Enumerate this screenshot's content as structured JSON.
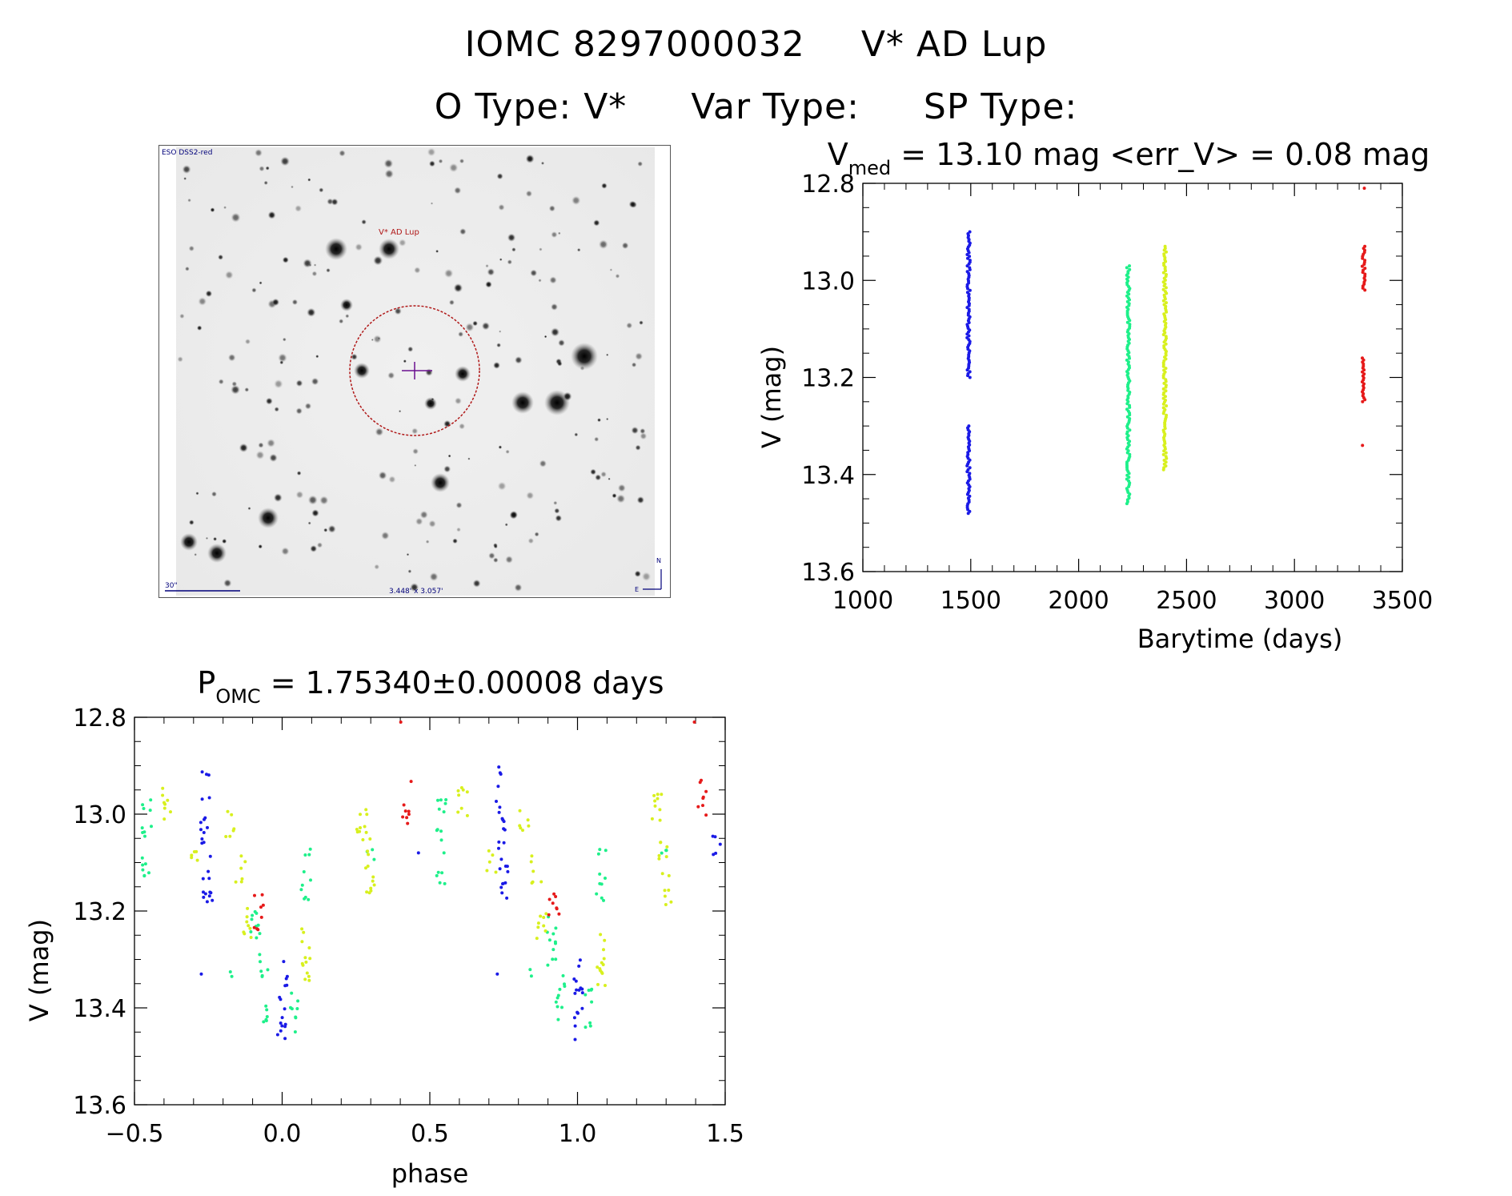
{
  "header": {
    "line1_id": "IOMC 8297000032",
    "line1_name": "V* AD Lup",
    "otype_label": "O Type: V*",
    "vartype_label": "Var Type:",
    "sptype_label": "SP Type:"
  },
  "image_panel": {
    "survey_label": "ESO DSS2-red",
    "target_label": "V* AD Lup",
    "scale_label": "30\"",
    "fov_label": "3.448' x 3.057'",
    "north_label": "N",
    "east_label": "E",
    "colors": {
      "target_circle": "#b01818",
      "labels": "#00007a",
      "crosshair": "#6a1090"
    }
  },
  "chart_data": [
    {
      "type": "scatter",
      "title_main": "V",
      "title_sub": "med",
      "title_rest": " = 13.10 mag <err_V> = 0.08 mag",
      "xlabel": "Barytime (days)",
      "ylabel": "V (mag)",
      "xlim": [
        1000,
        3500
      ],
      "ylim": [
        13.6,
        12.8
      ],
      "y_inverted": true,
      "xticks": [
        1000,
        1500,
        2000,
        2500,
        3000,
        3500
      ],
      "xtick_labels": [
        "1000",
        "1500",
        "2000",
        "2500",
        "3000",
        "3500"
      ],
      "yticks": [
        12.8,
        13.0,
        13.2,
        13.4,
        13.6
      ],
      "ytick_labels": [
        "12.8",
        "13.0",
        "13.2",
        "13.4",
        "13.6"
      ],
      "series": [
        {
          "color": "#1a1ae6",
          "x_center": 1490,
          "ranges": [
            [
              12.9,
              13.2
            ],
            [
              13.3,
              13.48
            ]
          ]
        },
        {
          "color": "#1ef08a",
          "x_center": 2230,
          "ranges": [
            [
              12.97,
              13.46
            ]
          ]
        },
        {
          "color": "#d8f01e",
          "x_center": 2400,
          "ranges": [
            [
              12.93,
              13.39
            ]
          ]
        },
        {
          "color": "#e61a1a",
          "x_center": 3320,
          "ranges": [
            [
              12.81,
              12.81
            ],
            [
              12.93,
              13.02
            ],
            [
              13.16,
              13.25
            ],
            [
              13.34,
              13.34
            ]
          ]
        }
      ]
    },
    {
      "type": "scatter",
      "title_main": "P",
      "title_sub": "OMC",
      "title_rest": " = 1.75340±0.00008 days",
      "xlabel": "phase",
      "ylabel": "V (mag)",
      "xlim": [
        -0.5,
        1.5
      ],
      "ylim": [
        13.6,
        12.8
      ],
      "y_inverted": true,
      "xticks": [
        -0.5,
        0.0,
        0.5,
        1.0,
        1.5
      ],
      "xtick_labels": [
        "−0.5",
        "0.0",
        "0.5",
        "1.0",
        "1.5"
      ],
      "yticks": [
        12.8,
        13.0,
        13.2,
        13.4,
        13.6
      ],
      "ytick_labels": [
        "12.8",
        "13.0",
        "13.2",
        "13.4",
        "13.6"
      ],
      "series": [
        {
          "color": "#1a1ae6",
          "clusters": [
            [
              -0.26,
              12.9,
              13.06
            ],
            [
              -0.25,
              13.07,
              13.2
            ],
            [
              -0.28,
              13.33,
              13.33
            ],
            [
              0.0,
              13.3,
              13.48
            ],
            [
              0.47,
              13.08,
              13.09
            ],
            [
              0.74,
              12.9,
              13.06
            ],
            [
              0.75,
              13.07,
              13.2
            ],
            [
              0.72,
              13.33,
              13.33
            ],
            [
              1.0,
              13.3,
              13.48
            ],
            [
              1.47,
              13.04,
              13.09
            ]
          ]
        },
        {
          "color": "#1ef08a",
          "clusters": [
            [
              -0.46,
              12.97,
              13.15
            ],
            [
              -0.09,
              13.2,
              13.32
            ],
            [
              -0.06,
              13.32,
              13.43
            ],
            [
              0.04,
              13.36,
              13.45
            ],
            [
              0.08,
              13.07,
              13.18
            ],
            [
              -0.16,
              13.32,
              13.34
            ],
            [
              0.3,
              13.07,
              13.1
            ],
            [
              0.54,
              12.97,
              13.15
            ],
            [
              0.91,
              13.2,
              13.32
            ],
            [
              0.94,
              13.32,
              13.43
            ],
            [
              1.04,
              13.36,
              13.45
            ],
            [
              1.08,
              13.07,
              13.18
            ],
            [
              0.84,
              13.32,
              13.34
            ],
            [
              1.3,
              13.07,
              13.1
            ]
          ]
        },
        {
          "color": "#d8f01e",
          "clusters": [
            [
              -0.39,
              12.93,
              13.02
            ],
            [
              -0.29,
              13.06,
              13.12
            ],
            [
              -0.18,
              12.98,
              13.05
            ],
            [
              -0.14,
              13.08,
              13.15
            ],
            [
              -0.12,
              13.17,
              13.26
            ],
            [
              0.08,
              13.23,
              13.37
            ],
            [
              0.27,
              12.95,
              13.05
            ],
            [
              0.29,
              13.05,
              13.12
            ],
            [
              0.3,
              13.12,
              13.2
            ],
            [
              0.61,
              12.93,
              13.02
            ],
            [
              0.71,
              13.06,
              13.12
            ],
            [
              0.82,
              12.98,
              13.05
            ],
            [
              0.86,
              13.08,
              13.15
            ],
            [
              0.88,
              13.17,
              13.26
            ],
            [
              1.08,
              13.23,
              13.37
            ],
            [
              1.27,
              12.95,
              13.05
            ],
            [
              1.29,
              13.05,
              13.12
            ],
            [
              1.3,
              13.12,
              13.2
            ]
          ]
        },
        {
          "color": "#e61a1a",
          "clusters": [
            [
              -0.08,
              13.16,
              13.25
            ],
            [
              0.42,
              12.93,
              13.02
            ],
            [
              0.41,
              12.81,
              12.81
            ],
            [
              0.92,
              13.16,
              13.25
            ],
            [
              1.42,
              12.93,
              13.02
            ],
            [
              1.41,
              12.81,
              12.81
            ]
          ]
        }
      ]
    }
  ]
}
